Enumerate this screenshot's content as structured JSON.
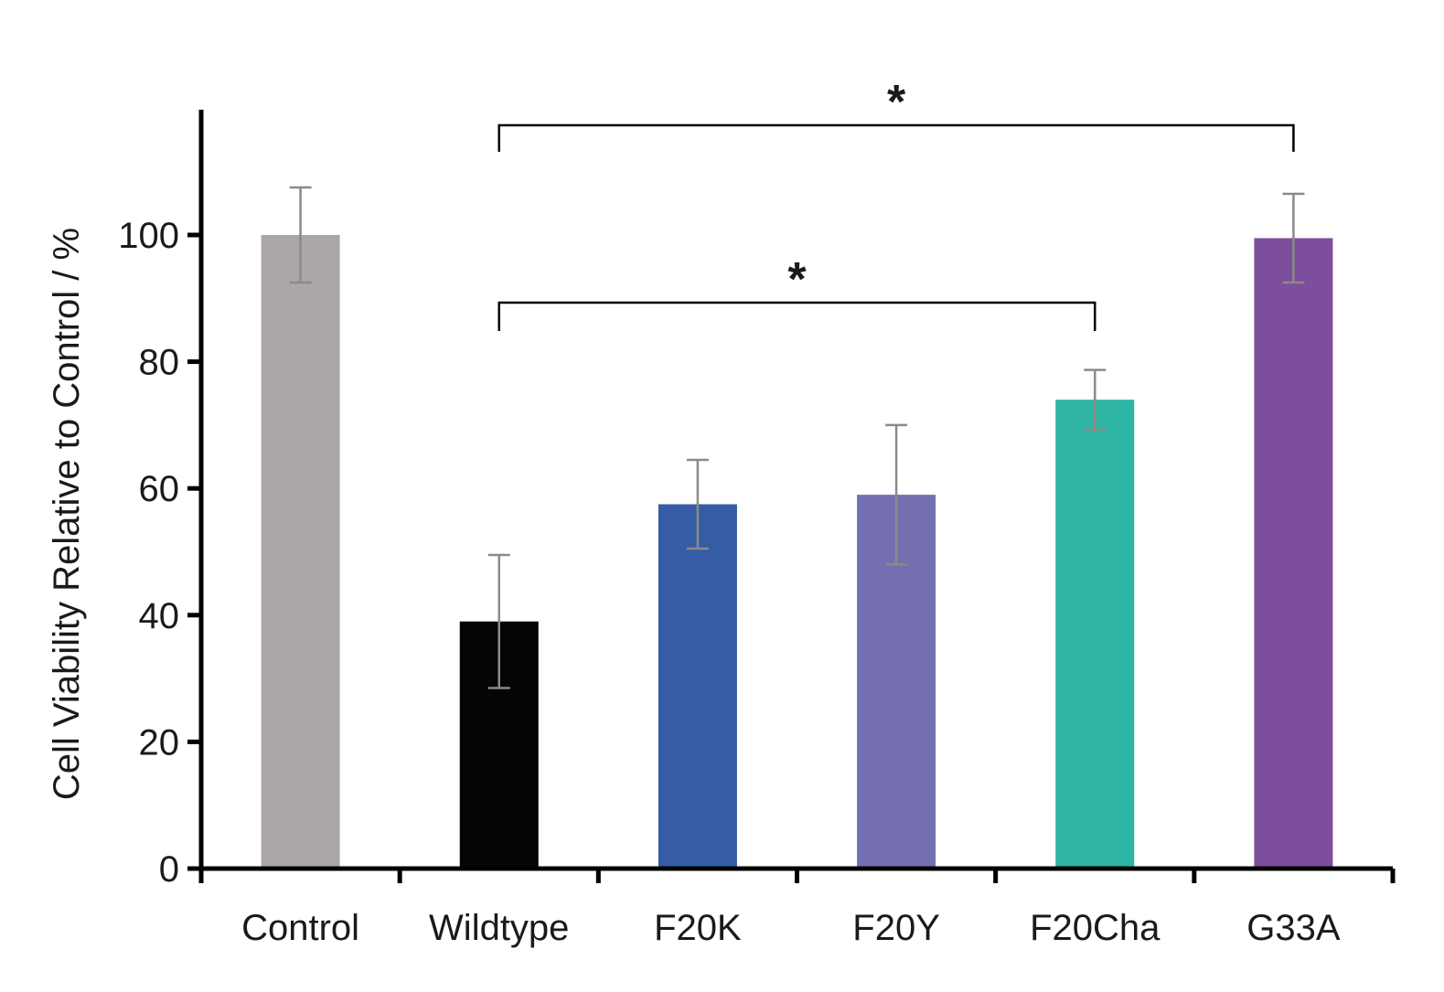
{
  "chart_data": {
    "type": "bar",
    "title": "",
    "xlabel": "",
    "ylabel": "Cell Viability Relative to Control / %",
    "ylim": [
      0,
      120
    ],
    "yticks": [
      0,
      20,
      40,
      60,
      80,
      100
    ],
    "grid": false,
    "categories": [
      "Control",
      "Wildtype",
      "F20K",
      "F20Y",
      "F20Cha",
      "G33A"
    ],
    "values": [
      100,
      39,
      57.5,
      59,
      74,
      99.5
    ],
    "errors": [
      7.5,
      10.5,
      7,
      11,
      4.7,
      7
    ],
    "colors": [
      "#aba7a7",
      "#050505",
      "#355ca4",
      "#746fb0",
      "#2eb5a3",
      "#7c4e9b"
    ],
    "error_bar_color": "#8a8a8a",
    "significance": [
      {
        "from": "Wildtype",
        "to": "G33A",
        "label": "*"
      },
      {
        "from": "Wildtype",
        "to": "F20Cha",
        "label": "*"
      }
    ]
  }
}
